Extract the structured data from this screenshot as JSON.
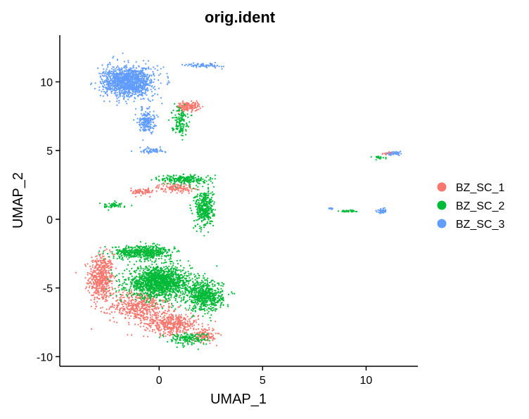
{
  "chart_data": {
    "type": "scatter",
    "title": "orig.ident",
    "xlabel": "UMAP_1",
    "ylabel": "UMAP_2",
    "xlim": [
      -4.8,
      12.5
    ],
    "ylim": [
      -10.7,
      13.4
    ],
    "xticks": [
      0,
      5,
      10
    ],
    "yticks": [
      -10,
      -5,
      0,
      5,
      10
    ],
    "grid": false,
    "legend_position": "right",
    "series": [
      {
        "name": "BZ_SC_1",
        "color": "#F8766D",
        "clusters": [
          {
            "center": [
              -2.8,
              -4.3
            ],
            "spread": [
              0.55,
              1.6
            ],
            "n": 520
          },
          {
            "center": [
              -1.0,
              -6.3
            ],
            "spread": [
              1.2,
              1.0
            ],
            "n": 480
          },
          {
            "center": [
              0.6,
              -7.6
            ],
            "spread": [
              1.2,
              0.7
            ],
            "n": 420
          },
          {
            "center": [
              2.2,
              -8.4
            ],
            "spread": [
              0.5,
              0.5
            ],
            "n": 120
          },
          {
            "center": [
              1.4,
              8.2
            ],
            "spread": [
              0.5,
              0.3
            ],
            "n": 160
          },
          {
            "center": [
              0.8,
              2.3
            ],
            "spread": [
              0.8,
              0.3
            ],
            "n": 130
          },
          {
            "center": [
              -0.8,
              2.0
            ],
            "spread": [
              0.5,
              0.25
            ],
            "n": 70
          },
          {
            "center": [
              11.1,
              4.8
            ],
            "spread": [
              0.3,
              0.1
            ],
            "n": 25
          }
        ]
      },
      {
        "name": "BZ_SC_2",
        "color": "#00BA38",
        "clusters": [
          {
            "center": [
              0.0,
              -4.6
            ],
            "spread": [
              1.4,
              1.0
            ],
            "n": 1500
          },
          {
            "center": [
              2.2,
              -5.6
            ],
            "spread": [
              0.8,
              1.0
            ],
            "n": 620
          },
          {
            "center": [
              -0.8,
              -2.4
            ],
            "spread": [
              1.3,
              0.45
            ],
            "n": 520
          },
          {
            "center": [
              2.2,
              0.8
            ],
            "spread": [
              0.4,
              1.3
            ],
            "n": 400
          },
          {
            "center": [
              1.2,
              2.9
            ],
            "spread": [
              1.0,
              0.3
            ],
            "n": 220
          },
          {
            "center": [
              1.0,
              7.2
            ],
            "spread": [
              0.35,
              0.9
            ],
            "n": 140
          },
          {
            "center": [
              -2.2,
              1.0
            ],
            "spread": [
              0.6,
              0.2
            ],
            "n": 50
          },
          {
            "center": [
              9.1,
              0.6
            ],
            "spread": [
              0.35,
              0.06
            ],
            "n": 45
          },
          {
            "center": [
              10.6,
              4.5
            ],
            "spread": [
              0.3,
              0.1
            ],
            "n": 25
          },
          {
            "center": [
              1.4,
              -8.7
            ],
            "spread": [
              0.9,
              0.4
            ],
            "n": 160
          }
        ]
      },
      {
        "name": "BZ_SC_3",
        "color": "#619CFF",
        "clusters": [
          {
            "center": [
              -1.5,
              10.0
            ],
            "spread": [
              1.1,
              1.0
            ],
            "n": 1300
          },
          {
            "center": [
              -0.6,
              7.2
            ],
            "spread": [
              0.35,
              0.8
            ],
            "n": 200
          },
          {
            "center": [
              -0.4,
              5.0
            ],
            "spread": [
              0.6,
              0.18
            ],
            "n": 60
          },
          {
            "center": [
              2.2,
              11.2
            ],
            "spread": [
              0.8,
              0.15
            ],
            "n": 70
          },
          {
            "center": [
              11.4,
              4.8
            ],
            "spread": [
              0.3,
              0.12
            ],
            "n": 40
          },
          {
            "center": [
              10.8,
              0.6
            ],
            "spread": [
              0.22,
              0.15
            ],
            "n": 45
          },
          {
            "center": [
              8.3,
              0.8
            ],
            "spread": [
              0.15,
              0.08
            ],
            "n": 10
          }
        ]
      }
    ]
  }
}
